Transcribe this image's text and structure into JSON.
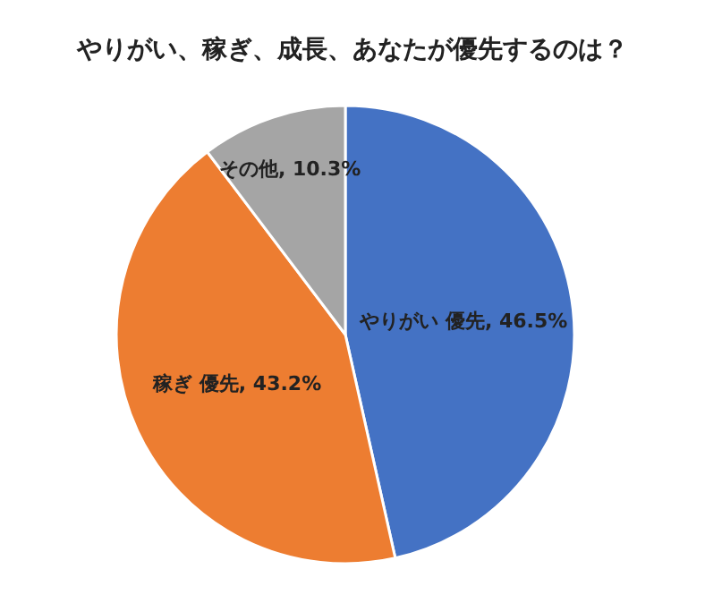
{
  "chart_data": {
    "type": "pie",
    "title": "やりがい、稼ぎ、成長、あなたが優先するのは？",
    "categories": [
      "やりがい 優先",
      "稼ぎ 優先",
      "その他"
    ],
    "values": [
      46.5,
      43.2,
      10.3
    ],
    "value_labels": [
      "46.5%",
      "43.2%",
      "10.3%"
    ],
    "colors": [
      "#4472c4",
      "#ed7d31",
      "#a5a5a5"
    ],
    "legend": false
  }
}
